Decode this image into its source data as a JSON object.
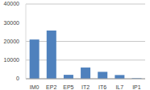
{
  "chart_data": {
    "type": "bar",
    "categories": [
      "IM0",
      "EP2",
      "EP5",
      "IT2",
      "IT6",
      "IL7",
      "IP1"
    ],
    "values": [
      21000,
      25800,
      2100,
      6000,
      3700,
      2000,
      300
    ],
    "color": "#4f81bd",
    "ylim": [
      0,
      40000
    ],
    "yticks": [
      0,
      10000,
      20000,
      30000,
      40000
    ],
    "grid": true
  }
}
